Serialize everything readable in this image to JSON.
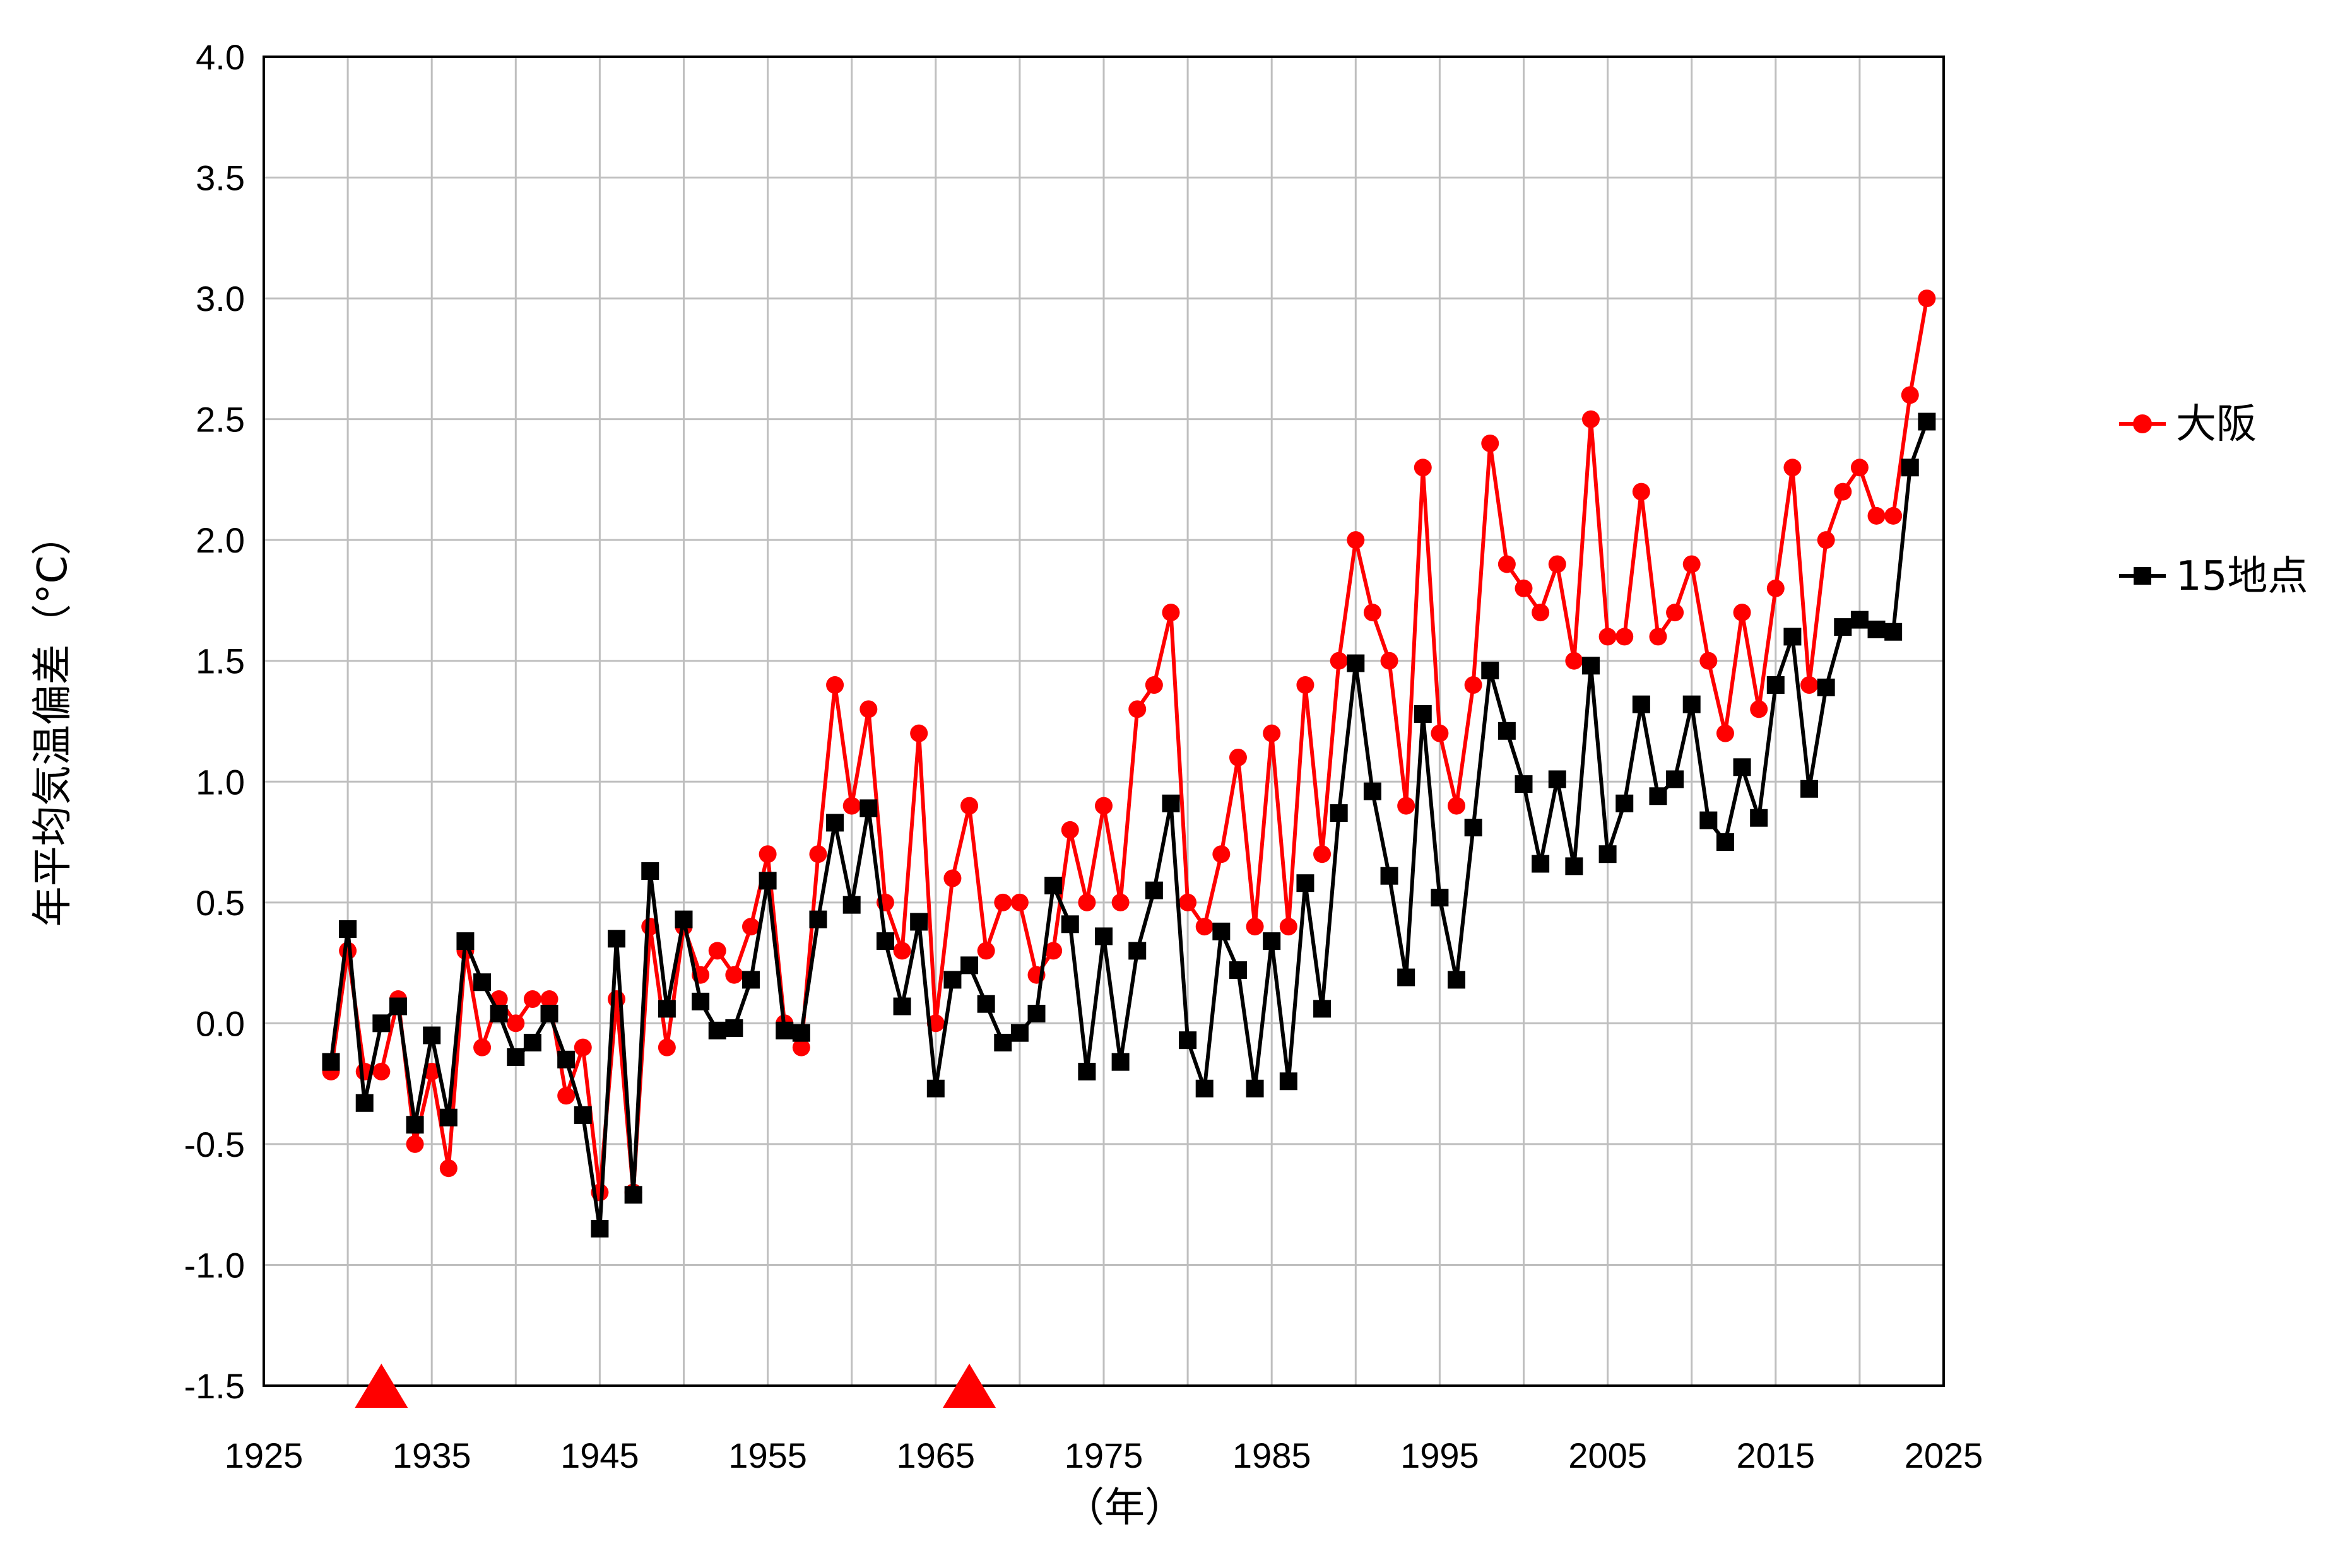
{
  "chart_data": {
    "type": "line",
    "title": "",
    "xlabel": "（年）",
    "ylabel": "年平均気温偏差（°C）",
    "xlim": [
      1925,
      2025
    ],
    "ylim": [
      -1.5,
      4.0
    ],
    "x_ticks": [
      "1925",
      "1935",
      "1945",
      "1955",
      "1965",
      "1975",
      "1985",
      "1995",
      "2005",
      "2015",
      "2025"
    ],
    "y_ticks": [
      "4.0",
      "3.5",
      "3.0",
      "2.5",
      "2.0",
      "1.5",
      "1.0",
      "0.5",
      "0.0",
      "-0.5",
      "-1.0",
      "-1.5"
    ],
    "grid": true,
    "legend_position": "right",
    "markers_on_x_axis": [
      1932,
      1967
    ],
    "marker_color": "#ff0000",
    "series": [
      {
        "name": "大阪",
        "color": "#ff0000",
        "marker": "circle",
        "start_year": 1929,
        "values": [
          -0.2,
          0.3,
          -0.2,
          -0.2,
          0.1,
          -0.5,
          -0.2,
          -0.6,
          0.3,
          -0.1,
          0.1,
          0.0,
          0.1,
          0.1,
          -0.3,
          -0.1,
          -0.7,
          0.1,
          -0.7,
          0.4,
          -0.1,
          0.4,
          0.2,
          0.3,
          0.2,
          0.4,
          0.7,
          0.0,
          -0.1,
          0.7,
          1.4,
          0.9,
          1.3,
          0.5,
          0.3,
          1.2,
          0.0,
          0.6,
          0.9,
          0.3,
          0.5,
          0.5,
          0.2,
          0.3,
          0.8,
          0.5,
          0.9,
          0.5,
          1.3,
          1.4,
          1.7,
          0.5,
          0.4,
          0.7,
          1.1,
          0.4,
          1.2,
          0.4,
          1.4,
          0.7,
          1.5,
          2.0,
          1.7,
          1.5,
          0.9,
          2.3,
          1.2,
          0.9,
          1.4,
          2.4,
          1.9,
          1.8,
          1.7,
          1.9,
          1.5,
          2.5,
          1.6,
          1.6,
          2.2,
          1.6,
          1.7,
          1.9,
          1.5,
          1.2,
          1.7,
          1.3,
          1.8,
          2.3,
          1.4,
          2.0,
          2.2,
          2.3,
          2.1,
          2.1,
          2.6,
          3.0
        ]
      },
      {
        "name": "15地点",
        "color": "#000000",
        "marker": "square",
        "start_year": 1929,
        "values": [
          -0.16,
          0.39,
          -0.33,
          -0.0,
          0.07,
          -0.42,
          -0.05,
          -0.39,
          0.34,
          0.17,
          0.04,
          -0.14,
          -0.08,
          0.04,
          -0.15,
          -0.38,
          -0.85,
          0.35,
          -0.71,
          0.63,
          0.06,
          0.43,
          0.09,
          -0.03,
          -0.02,
          0.18,
          0.59,
          -0.03,
          -0.04,
          0.43,
          0.83,
          0.49,
          0.89,
          0.34,
          0.07,
          0.42,
          -0.27,
          0.18,
          0.24,
          0.08,
          -0.08,
          -0.04,
          0.04,
          0.57,
          0.41,
          -0.2,
          0.36,
          -0.16,
          0.3,
          0.55,
          0.91,
          -0.07,
          -0.27,
          0.38,
          0.22,
          -0.27,
          0.34,
          -0.24,
          0.58,
          0.06,
          0.87,
          1.49,
          0.96,
          0.61,
          0.19,
          1.28,
          0.52,
          0.18,
          0.81,
          1.46,
          1.21,
          0.99,
          0.66,
          1.01,
          0.65,
          1.48,
          0.7,
          0.91,
          1.32,
          0.94,
          1.01,
          1.32,
          0.84,
          0.75,
          1.06,
          0.85,
          1.4,
          1.6,
          0.97,
          1.39,
          1.64,
          1.67,
          1.63,
          1.62,
          2.3,
          2.49
        ]
      }
    ]
  }
}
